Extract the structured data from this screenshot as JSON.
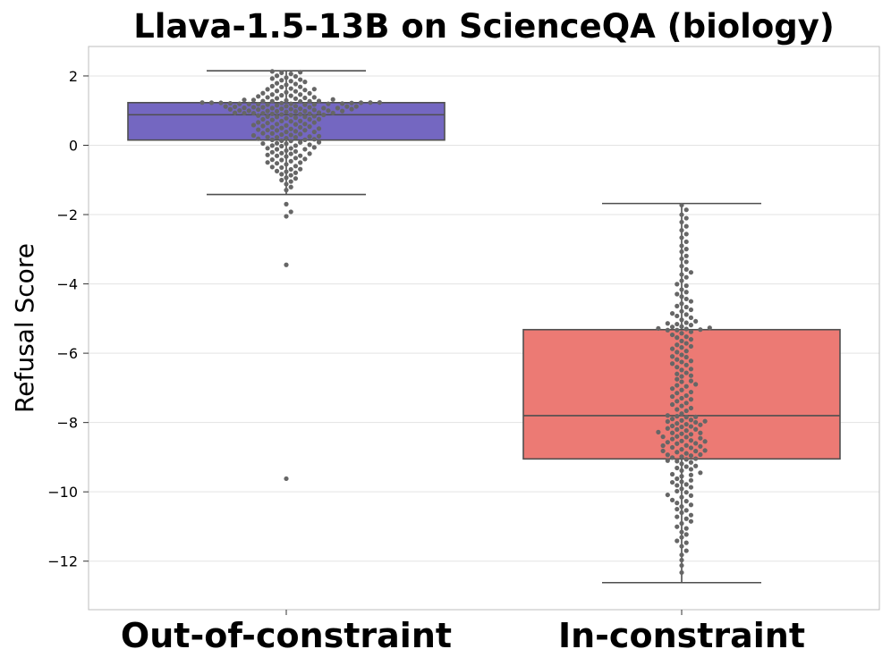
{
  "chart_data": {
    "type": "box-swarm",
    "title": "Llava-1.5-13B on ScienceQA (biology)",
    "xlabel": "",
    "ylabel": "Refusal Score",
    "ylim": [
      -13.4,
      2.85
    ],
    "yticks": [
      2,
      0,
      -2,
      -4,
      -6,
      -8,
      -10,
      -12
    ],
    "ytick_labels": [
      "2",
      "0",
      "−2",
      "−4",
      "−6",
      "−8",
      "−10",
      "−12"
    ],
    "grid": "horizontal",
    "categories": [
      "Out-of-constraint",
      "In-constraint"
    ],
    "series": [
      {
        "name": "Out-of-constraint",
        "color": "#7467c1",
        "whisker_low": -1.42,
        "q1": 0.15,
        "median": 0.88,
        "q3": 1.23,
        "whisker_high": 2.15,
        "outliers": [
          -1.7,
          -1.92,
          -2.05,
          -3.45,
          -9.62
        ],
        "point_count": 210
      },
      {
        "name": "In-constraint",
        "color": "#ec7a74",
        "whisker_low": -12.62,
        "q1": -9.05,
        "median": -7.8,
        "q3": -5.32,
        "whisker_high": -1.68,
        "outliers": [],
        "point_count": 210
      }
    ],
    "point_color": "#666666",
    "line_color": "#4f4f4f"
  }
}
